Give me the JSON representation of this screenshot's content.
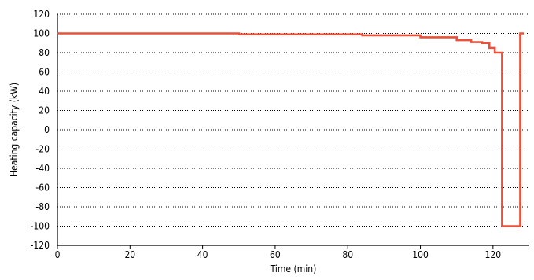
{
  "chart_data": {
    "type": "line",
    "title": "",
    "xlabel": "Time (min)",
    "ylabel": "Heating capacity (kW)",
    "xlim": [
      0,
      130
    ],
    "ylim": [
      -120,
      120
    ],
    "xticks": [
      0,
      20,
      40,
      60,
      80,
      100,
      120
    ],
    "yticks": [
      -120,
      -100,
      -80,
      -60,
      -40,
      -20,
      0,
      20,
      40,
      60,
      80,
      100,
      120
    ],
    "grid": "horizontal dotted",
    "line_color": "#e8523a",
    "series": [
      {
        "step": true,
        "x": [
          0,
          50,
          50,
          84,
          84,
          100,
          100,
          110,
          110,
          114,
          114,
          117,
          117,
          119,
          119,
          120.5,
          120.5,
          122.5,
          122.5,
          127.5,
          127.5,
          128.5
        ],
        "values": [
          100,
          100,
          99,
          99,
          98,
          98,
          96,
          96,
          93,
          93,
          91,
          91,
          90,
          90,
          85,
          85,
          80,
          80,
          -100,
          -100,
          100,
          100
        ]
      }
    ]
  }
}
